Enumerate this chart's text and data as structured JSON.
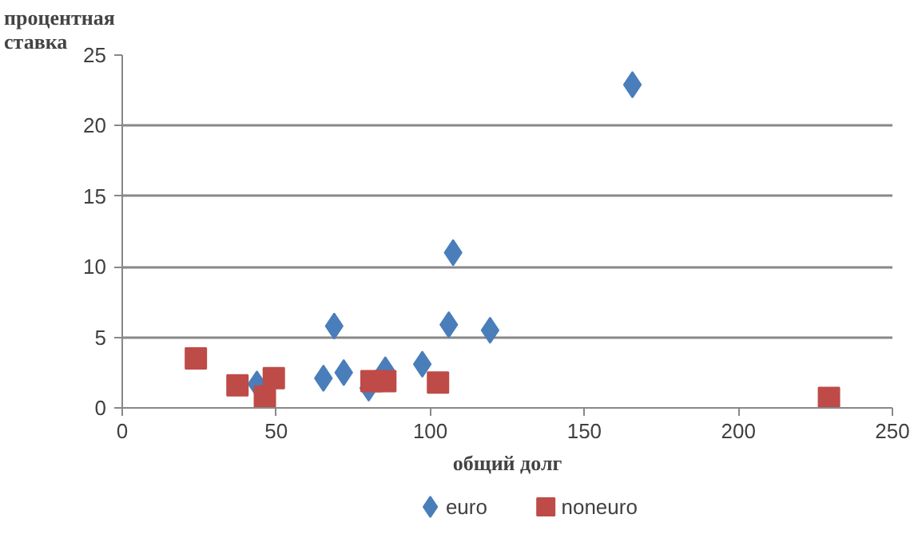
{
  "chart_data": {
    "type": "scatter",
    "xlabel": "общий долг",
    "ylabel": "процентная\nставка",
    "xlim": [
      0,
      250
    ],
    "ylim": [
      0,
      25
    ],
    "xticks": [
      0,
      50,
      100,
      150,
      200,
      250
    ],
    "yticks": [
      0,
      5,
      10,
      15,
      20,
      25
    ],
    "grid": "y",
    "legend": "bottom",
    "series": [
      {
        "name": "euro",
        "color": "#4a7ebb",
        "marker": "diamond",
        "x": [
          43.7,
          65.3,
          68.8,
          71.9,
          80,
          85.4,
          97.4,
          106,
          107.4,
          119.4,
          165.6
        ],
        "values": [
          1.7,
          2.1,
          5.8,
          2.5,
          1.4,
          2.7,
          3.1,
          5.9,
          11.0,
          5.5,
          22.9
        ]
      },
      {
        "name": "noneuro",
        "color": "#be4b48",
        "marker": "square",
        "x": [
          23.9,
          37.4,
          46.3,
          49.2,
          80.9,
          85.4,
          102.5,
          229.4
        ],
        "values": [
          3.5,
          1.6,
          0.8,
          2.1,
          1.9,
          1.9,
          1.8,
          0.7
        ]
      }
    ]
  }
}
